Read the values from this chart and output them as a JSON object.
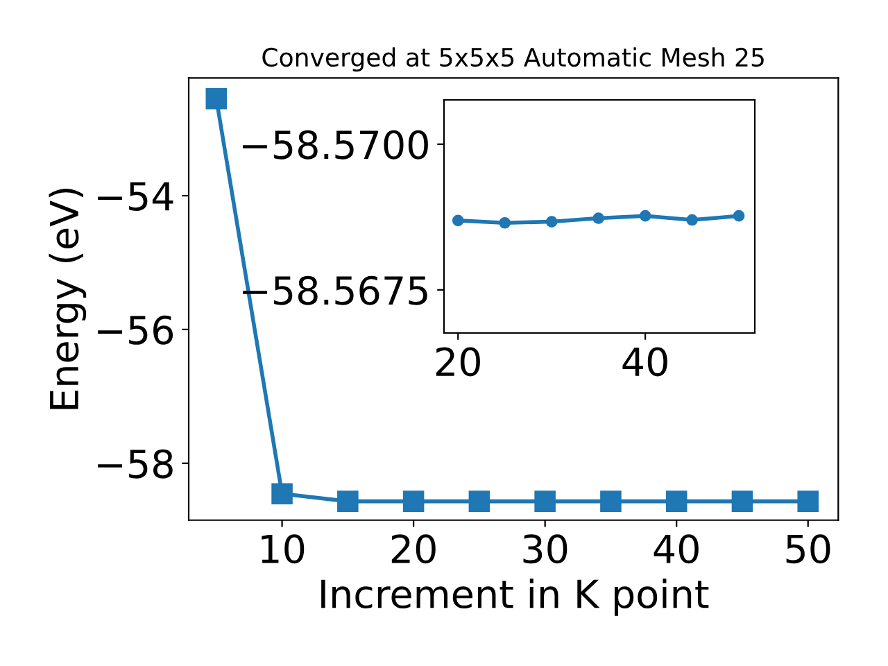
{
  "chart_data": [
    {
      "type": "line",
      "title": "Converged at 5x5x5 Automatic Mesh 25",
      "xlabel": "Increment in K point",
      "ylabel": "Energy (eV)",
      "x": [
        5,
        10,
        15,
        20,
        25,
        30,
        35,
        40,
        45,
        50
      ],
      "series": [
        {
          "color": "#1f77b4",
          "values": [
            -52.55,
            -58.456,
            -58.56869,
            -58.56869,
            -58.56865,
            -58.56867,
            -58.56873,
            -58.56877,
            -58.5687,
            -58.56877
          ]
        }
      ],
      "xlim": [
        2.9,
        52.3
      ],
      "ylim": [
        -58.85,
        -52.24
      ],
      "xticks": [
        10,
        20,
        30,
        40,
        50
      ],
      "yticks": [
        {
          "value": -58,
          "label": "−58"
        },
        {
          "value": -56,
          "label": "−56"
        },
        {
          "value": -54,
          "label": "−54"
        }
      ],
      "marker": "square",
      "line_style": "solid",
      "grid": false,
      "legend": false
    },
    {
      "type": "line",
      "x": [
        20,
        25,
        30,
        35,
        40,
        45,
        50
      ],
      "series": [
        {
          "color": "#1f77b4",
          "values": [
            -58.56869,
            -58.56865,
            -58.56867,
            -58.56873,
            -58.56877,
            -58.5687,
            -58.56877
          ]
        }
      ],
      "xlim": [
        18.5,
        51.7
      ],
      "ylim": [
        -58.56676,
        -58.57076
      ],
      "xticks": [
        20,
        40
      ],
      "yticks": [
        {
          "value": -58.57,
          "label": "−58.5700"
        },
        {
          "value": -58.5675,
          "label": "−58.5675"
        }
      ],
      "marker": "circle",
      "line_style": "solid",
      "grid": false,
      "legend": false
    }
  ]
}
